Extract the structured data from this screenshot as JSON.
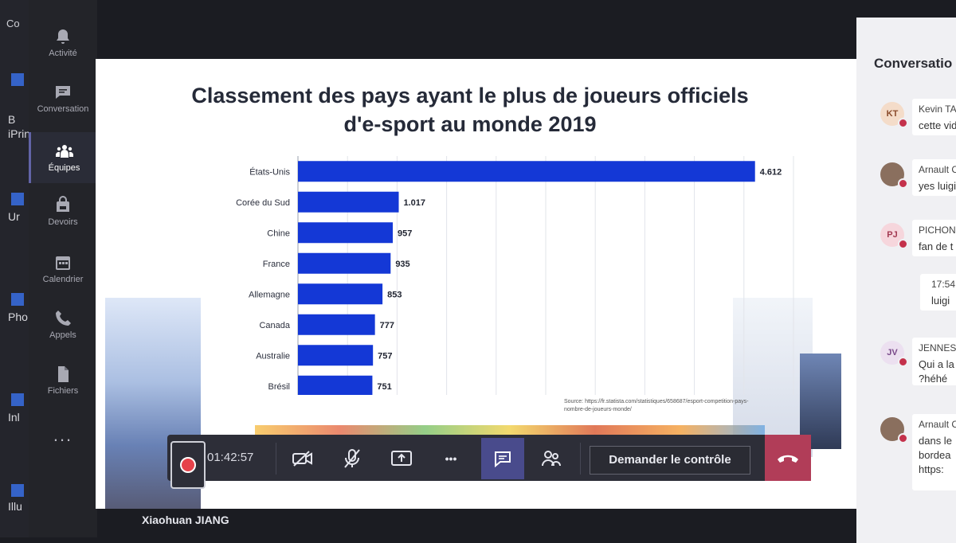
{
  "desktop": {
    "top_text": "Co",
    "items": [
      "B",
      "iPrin",
      "Ur",
      "Pho",
      "Inl",
      "Illu"
    ]
  },
  "rail": {
    "items": [
      {
        "label": "Activité",
        "icon": "bell-icon"
      },
      {
        "label": "Conversation",
        "icon": "chat-icon"
      },
      {
        "label": "Équipes",
        "icon": "teams-icon",
        "active": true
      },
      {
        "label": "Devoirs",
        "icon": "backpack-icon"
      },
      {
        "label": "Calendrier",
        "icon": "calendar-icon"
      },
      {
        "label": "Appels",
        "icon": "phone-icon"
      },
      {
        "label": "Fichiers",
        "icon": "file-icon"
      }
    ],
    "more": "..."
  },
  "shared_screen": {
    "title_line1": "Classement des pays ayant le plus de joueurs officiels",
    "title_line2": "d'e-sport au monde 2019",
    "source_line1": "Source: https://fr.statista.com/statistiques/658687/esport-competition-pays-",
    "source_line2": "nombre-de-joueurs-monde/"
  },
  "chart_data": {
    "type": "bar",
    "orientation": "horizontal",
    "title": "Classement des pays ayant le plus de joueurs officiels d'e-sport au monde 2019",
    "categories": [
      "États-Unis",
      "Corée du Sud",
      "Chine",
      "France",
      "Allemagne",
      "Canada",
      "Australie",
      "Brésil"
    ],
    "values": [
      4612,
      1017,
      957,
      935,
      853,
      777,
      757,
      751
    ],
    "value_labels": [
      "4.612",
      "1.017",
      "957",
      "935",
      "853",
      "777",
      "757",
      "751"
    ],
    "xlim": [
      0,
      5000
    ],
    "grid": true,
    "bar_color": "#1438d6"
  },
  "toolbar": {
    "timer": "01:42:57",
    "control_label": "Demander le contrôle",
    "more": "•••",
    "hangup_color": "#b13d58",
    "accent": "#494b8c"
  },
  "presenter": "Xiaohuan JIANG",
  "conversation": {
    "title": "Conversatio",
    "messages": [
      {
        "initials": "KT",
        "name": "Kevin TAT",
        "text": "cette vid",
        "avatar_bg": "#f4dcc9"
      },
      {
        "initials": "",
        "name": "Arnault C",
        "text": "yes luigi",
        "avatar_bg": "#8a6f5e"
      },
      {
        "initials": "PJ",
        "name": "PICHON .",
        "text": "fan de t",
        "avatar_bg": "#f6d6dc"
      },
      {
        "initials": "",
        "name": "17:54",
        "text": "luigi",
        "avatar_bg": ""
      },
      {
        "initials": "JV",
        "name": "JENNES V",
        "text": "Qui a la",
        "text2": "?héhé",
        "avatar_bg": "#ece0f0"
      },
      {
        "initials": "",
        "name": "Arnault C",
        "text": "dans le",
        "text2": "bordea",
        "text3": "https:",
        "avatar_bg": "#8a6f5e"
      }
    ]
  }
}
